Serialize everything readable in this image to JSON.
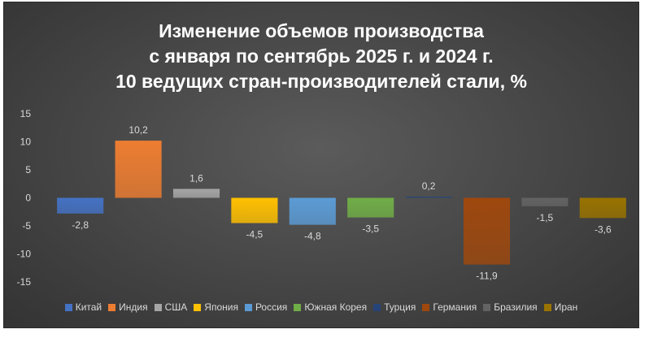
{
  "chart_data": {
    "type": "bar",
    "title_lines": [
      "Изменение объемов производства",
      "с января по сентябрь 2025 г. и 2024 г.",
      "10 ведущих стран-производителей стали, %"
    ],
    "categories": [
      "Китай",
      "Индия",
      "США",
      "Япония",
      "Россия",
      "Южная Корея",
      "Турция",
      "Германия",
      "Бразилия",
      "Иран"
    ],
    "values": [
      -2.8,
      10.2,
      1.6,
      -4.5,
      -4.8,
      -3.5,
      0.2,
      -11.9,
      -1.5,
      -3.6
    ],
    "data_labels": [
      "-2,8",
      "10,2",
      "1,6",
      "-4,5",
      "-4,8",
      "-3,5",
      "0,2",
      "-11,9",
      "-1,5",
      "-3,6"
    ],
    "colors": [
      "#4472c4",
      "#ed7d31",
      "#a5a5a5",
      "#ffc000",
      "#5b9bd5",
      "#70ad47",
      "#264478",
      "#9e480e",
      "#636363",
      "#997300"
    ],
    "ylim": [
      -15,
      15
    ],
    "yticks": [
      15,
      10,
      5,
      0,
      -5,
      -10,
      -15
    ],
    "ytick_labels": [
      "15",
      "10",
      "5",
      "0",
      "-5",
      "-10",
      "-15"
    ],
    "grid": false,
    "legend_position": "bottom",
    "xlabel": "",
    "ylabel": ""
  }
}
